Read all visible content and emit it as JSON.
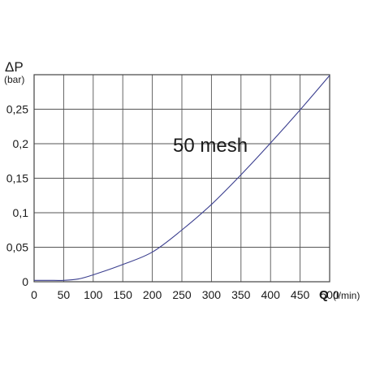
{
  "chart_data": {
    "type": "line",
    "x": [
      0,
      25,
      50,
      75,
      100,
      150,
      200,
      250,
      300,
      350,
      400,
      450,
      500
    ],
    "series": [
      {
        "name": "50 mesh",
        "values": [
          0.002,
          0.002,
          0.002,
          0.004,
          0.01,
          0.025,
          0.043,
          0.075,
          0.112,
          0.155,
          0.201,
          0.249,
          0.299
        ]
      }
    ],
    "x_ticks": [
      0,
      50,
      100,
      150,
      200,
      250,
      300,
      350,
      400,
      450,
      500
    ],
    "x_tick_labels": [
      "0",
      "50",
      "100",
      "150",
      "200",
      "250",
      "300",
      "350",
      "400",
      "450",
      "500"
    ],
    "y_ticks": [
      0,
      0.05,
      0.1,
      0.15,
      0.2,
      0.25
    ],
    "y_tick_labels": [
      "0",
      "0,05",
      "0,1",
      "0,15",
      "0,2",
      "0,25"
    ],
    "xlim": [
      0,
      500
    ],
    "ylim": [
      0,
      0.3
    ],
    "grid": true,
    "ylabel": "ΔP",
    "ylabel_unit": "(bar)",
    "xlabel": "Q",
    "xlabel_unit": "(l/min)",
    "annotation": "50 mesh",
    "colors": {
      "line": "#3b3f8f",
      "grid": "#555555",
      "axis": "#444444",
      "text": "#1a1a1a"
    }
  }
}
